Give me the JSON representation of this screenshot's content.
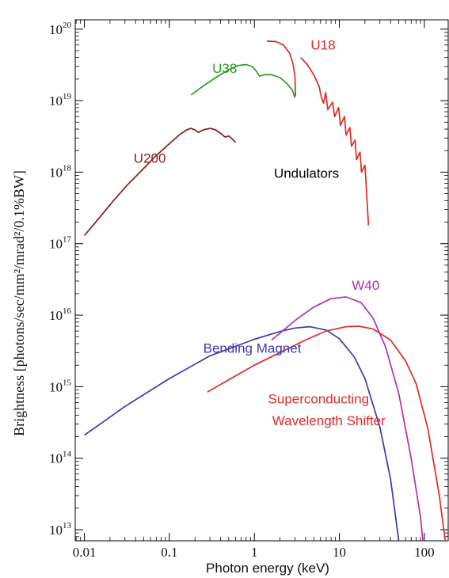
{
  "chart_data": {
    "type": "line",
    "xlabel": "Photon energy (keV)",
    "ylabel": "Brightness [photons/sec/mm²/mrad²/0.1%BW]",
    "x_scale": "log",
    "y_scale": "log",
    "xlim": [
      0.0078,
      195
    ],
    "ylim": [
      7000000000000.0,
      1.35e+20
    ],
    "x_ticks": [
      {
        "value": 0.01,
        "label": "0.01"
      },
      {
        "value": 0.1,
        "label": "0.1"
      },
      {
        "value": 1,
        "label": "1"
      },
      {
        "value": 10,
        "label": "10"
      },
      {
        "value": 100,
        "label": "100"
      }
    ],
    "y_ticks": [
      {
        "value": 10000000000000.0,
        "base": "10",
        "exp": "13"
      },
      {
        "value": 100000000000000.0,
        "base": "10",
        "exp": "14"
      },
      {
        "value": 1000000000000000.0,
        "base": "10",
        "exp": "15"
      },
      {
        "value": 1e+16,
        "base": "10",
        "exp": "16"
      },
      {
        "value": 1e+17,
        "base": "10",
        "exp": "17"
      },
      {
        "value": 1e+18,
        "base": "10",
        "exp": "18"
      },
      {
        "value": 1e+19,
        "base": "10",
        "exp": "19"
      },
      {
        "value": 1e+20,
        "base": "10",
        "exp": "20"
      }
    ],
    "series": [
      {
        "name": "U200",
        "color": "#8b1a1a",
        "points": [
          [
            0.01,
            1.3e+17
          ],
          [
            0.015,
            2.3e+17
          ],
          [
            0.022,
            4e+17
          ],
          [
            0.032,
            6.6e+17
          ],
          [
            0.047,
            1.05e+18
          ],
          [
            0.068,
            1.65e+18
          ],
          [
            0.1,
            2.5e+18
          ],
          [
            0.13,
            3.3e+18
          ],
          [
            0.16,
            3.9e+18
          ],
          [
            0.18,
            4.1e+18
          ],
          [
            0.2,
            3.9e+18
          ],
          [
            0.22,
            3.6e+18
          ],
          [
            0.25,
            3.9e+18
          ],
          [
            0.3,
            4.1e+18
          ],
          [
            0.35,
            3.9e+18
          ],
          [
            0.4,
            3.5e+18
          ],
          [
            0.45,
            3.1e+18
          ],
          [
            0.5,
            3.2e+18
          ],
          [
            0.55,
            2.9e+18
          ],
          [
            0.6,
            2.6e+18
          ]
        ]
      },
      {
        "name": "U38",
        "color": "#2a9a2a",
        "points": [
          [
            0.18,
            1.2e+19
          ],
          [
            0.25,
            1.6e+19
          ],
          [
            0.35,
            2.1e+19
          ],
          [
            0.5,
            2.7e+19
          ],
          [
            0.65,
            3.1e+19
          ],
          [
            0.8,
            3.2e+19
          ],
          [
            0.95,
            3e+19
          ],
          [
            1.05,
            2.6e+19
          ],
          [
            1.15,
            2.2e+19
          ],
          [
            1.3,
            2.3e+19
          ],
          [
            1.6,
            2.3e+19
          ],
          [
            2.0,
            2.1e+19
          ],
          [
            2.4,
            1.75e+19
          ],
          [
            2.8,
            1.4e+19
          ],
          [
            3.0,
            1.1e+19
          ]
        ]
      },
      {
        "name": "U18",
        "color": "#dd2a2a",
        "points": [
          [
            1.4,
            6.8e+19
          ],
          [
            1.8,
            6.7e+19
          ],
          [
            2.2,
            6e+19
          ],
          [
            2.6,
            4.6e+19
          ],
          [
            2.85,
            3.3e+19
          ],
          [
            3.0,
            2.2e+19
          ],
          [
            3.05,
            1.15e+19
          ]
        ]
      },
      {
        "name": "U18",
        "color": "#dd2a2a",
        "points": [
          [
            3.5,
            4e+19
          ],
          [
            4.2,
            3.2e+19
          ],
          [
            5.0,
            2.3e+19
          ],
          [
            5.8,
            1.55e+19
          ],
          [
            6.1,
            1.15e+19
          ],
          [
            6.5,
            9.2e+18
          ],
          [
            6.9,
            1.3e+19
          ],
          [
            7.3,
            7.5e+18
          ],
          [
            8.3,
            9.5e+18
          ],
          [
            8.8,
            6e+18
          ],
          [
            9.8,
            8e+18
          ],
          [
            10.3,
            4.5e+18
          ],
          [
            11.5,
            6e+18
          ],
          [
            12.0,
            3.3e+18
          ],
          [
            13.3,
            4.2e+18
          ],
          [
            13.9,
            2.3e+18
          ],
          [
            15.3,
            2.8e+18
          ],
          [
            15.9,
            1.5e+18
          ],
          [
            17.5,
            1.9e+18
          ],
          [
            18.2,
            1e+18
          ],
          [
            20.0,
            1.25e+18
          ],
          [
            22.0,
            1.8e+17
          ]
        ]
      },
      {
        "name": "Bending Magnet",
        "color": "#3a3ab0",
        "points": [
          [
            0.01,
            210000000000000.0
          ],
          [
            0.03,
            530000000000000.0
          ],
          [
            0.1,
            1300000000000000.0
          ],
          [
            0.3,
            2700000000000000.0
          ],
          [
            1,
            4600000000000000.0
          ],
          [
            2,
            5900000000000000.0
          ],
          [
            3,
            6600000000000000.0
          ],
          [
            4.5,
            6900000000000000.0
          ],
          [
            7,
            6200000000000000.0
          ],
          [
            10,
            4700000000000000.0
          ],
          [
            15,
            2600000000000000.0
          ],
          [
            20,
            1300000000000000.0
          ],
          [
            30,
            270000000000000.0
          ],
          [
            40,
            51000000000000.0
          ],
          [
            50,
            7000000000000.0
          ]
        ]
      },
      {
        "name": "W40",
        "color": "#b030b0",
        "points": [
          [
            1.6,
            4500000000000000.0
          ],
          [
            2,
            5600000000000000.0
          ],
          [
            3,
            8400000000000000.0
          ],
          [
            5,
            1.3e+16
          ],
          [
            8,
            1.7e+16
          ],
          [
            12,
            1.8e+16
          ],
          [
            18,
            1.5e+16
          ],
          [
            25,
            9000000000000000.0
          ],
          [
            35,
            3600000000000000.0
          ],
          [
            50,
            800000000000000.0
          ],
          [
            70,
            100000000000000.0
          ],
          [
            90,
            15000000000000.0
          ],
          [
            96,
            7000000000000.0
          ]
        ]
      },
      {
        "name": "Superconducting Wavelength Shifter",
        "color": "#dd2a2a",
        "points": [
          [
            0.28,
            840000000000000.0
          ],
          [
            0.5,
            1250000000000000.0
          ],
          [
            1,
            2000000000000000.0
          ],
          [
            2,
            3000000000000000.0
          ],
          [
            4,
            4500000000000000.0
          ],
          [
            7,
            6000000000000000.0
          ],
          [
            12,
            6900000000000000.0
          ],
          [
            17,
            7000000000000000.0
          ],
          [
            25,
            6400000000000000.0
          ],
          [
            40,
            4500000000000000.0
          ],
          [
            60,
            2300000000000000.0
          ],
          [
            80,
            1100000000000000.0
          ],
          [
            110,
            260000000000000.0
          ],
          [
            150,
            30000000000000.0
          ],
          [
            190,
            3500000000000.0
          ]
        ]
      }
    ],
    "annotations": [
      {
        "text": "U200",
        "color": "#8b1a1a",
        "x": 0.038,
        "y": 1.35e+18
      },
      {
        "text": "U38",
        "color": "#2a9a2a",
        "x": 0.32,
        "y": 2.45e+19
      },
      {
        "text": "U18",
        "color": "#dd2a2a",
        "x": 4.6,
        "y": 5.2e+19
      },
      {
        "text": "Undulators",
        "color": "#000000",
        "x": 1.7,
        "y": 8.3e+17
      },
      {
        "text": "W40",
        "color": "#b030b0",
        "x": 14,
        "y": 2.25e+16
      },
      {
        "text": "Bending Magnet",
        "color": "#3a3ab0",
        "x": 0.25,
        "y": 3000000000000000.0
      },
      {
        "text": "Superconducting",
        "color": "#dd2a2a",
        "x": 1.45,
        "y": 580000000000000.0
      },
      {
        "text": "Wavelength Shifter",
        "color": "#dd2a2a",
        "x": 1.62,
        "y": 290000000000000.0
      }
    ]
  }
}
